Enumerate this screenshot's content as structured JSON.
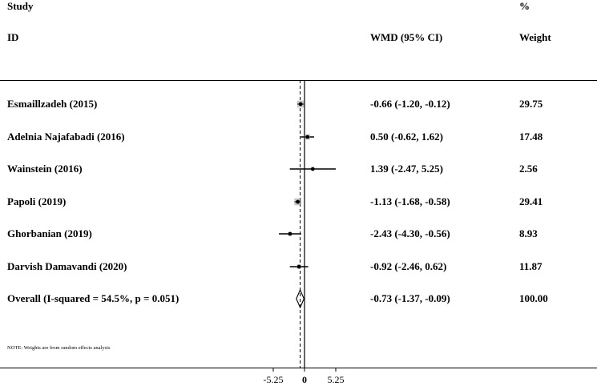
{
  "headers": {
    "study": "Study",
    "id": "ID",
    "estimate": "WMD (95% CI)",
    "weight_pct": "%",
    "weight": "Weight"
  },
  "note": "NOTE: Weights are from random effects analysis",
  "rows": [
    {
      "label": "Esmaillzadeh (2015)",
      "estimate": "-0.66 (-1.20, -0.12)",
      "weight": "29.75"
    },
    {
      "label": "Adelnia Najafabadi (2016)",
      "estimate": "0.50 (-0.62, 1.62)",
      "weight": "17.48"
    },
    {
      "label": "Wainstein (2016)",
      "estimate": "1.39 (-2.47, 5.25)",
      "weight": "2.56"
    },
    {
      "label": "Papoli (2019)",
      "estimate": "-1.13 (-1.68, -0.58)",
      "weight": "29.41"
    },
    {
      "label": "Ghorbanian  (2019)",
      "estimate": "-2.43 (-4.30, -0.56)",
      "weight": "8.93"
    },
    {
      "label": "Darvish Damavandi (2020)",
      "estimate": "-0.92 (-2.46, 0.62)",
      "weight": "11.87"
    }
  ],
  "overall": {
    "label": "Overall  (I-squared = 54.5%, p = 0.051)",
    "estimate": "-0.73 (-1.37, -0.09)",
    "weight": "100.00"
  },
  "chart_data": {
    "type": "forest",
    "xlabel": "",
    "x_ticks": [
      "-5.25",
      "0",
      "5.25"
    ],
    "x_tick_values": [
      -5.25,
      0,
      5.25
    ],
    "xlim": [
      -5.6,
      5.6
    ],
    "null_line": 0,
    "overall_line": -0.73,
    "studies": [
      {
        "name": "Esmaillzadeh (2015)",
        "wmd": -0.66,
        "lower": -1.2,
        "upper": -0.12,
        "weight": 29.75
      },
      {
        "name": "Adelnia Najafabadi (2016)",
        "wmd": 0.5,
        "lower": -0.62,
        "upper": 1.62,
        "weight": 17.48
      },
      {
        "name": "Wainstein (2016)",
        "wmd": 1.39,
        "lower": -2.47,
        "upper": 5.25,
        "weight": 2.56
      },
      {
        "name": "Papoli (2019)",
        "wmd": -1.13,
        "lower": -1.68,
        "upper": -0.58,
        "weight": 29.41
      },
      {
        "name": "Ghorbanian  (2019)",
        "wmd": -2.43,
        "lower": -4.3,
        "upper": -0.56,
        "weight": 8.93
      },
      {
        "name": "Darvish Damavandi (2020)",
        "wmd": -0.92,
        "lower": -2.46,
        "upper": 0.62,
        "weight": 11.87
      }
    ],
    "overall": {
      "wmd": -0.73,
      "lower": -1.37,
      "upper": -0.09,
      "weight": 100.0
    }
  }
}
